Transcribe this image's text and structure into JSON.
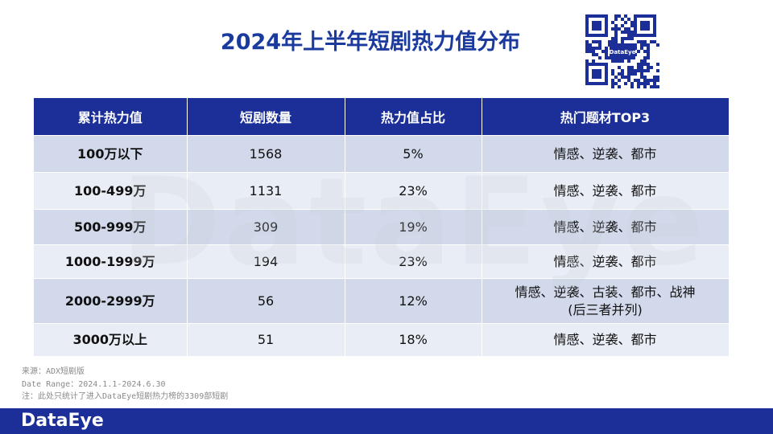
{
  "title": "2024年上半年短剧热力值分布",
  "qr_label": "DataEye",
  "watermark": "DataEye",
  "table": {
    "header": [
      "累计热力值",
      "短剧数量",
      "热力值占比",
      "热门题材TOP3"
    ],
    "rows": [
      [
        "100万以下",
        "1568",
        "5%",
        "情感、逆袭、都市"
      ],
      [
        "100-499万",
        "1131",
        "23%",
        "情感、逆袭、都市"
      ],
      [
        "500-999万",
        "309",
        "19%",
        "情感、逆袭、都市"
      ],
      [
        "1000-1999万",
        "194",
        "23%",
        "情感、逆袭、都市"
      ],
      [
        "2000-2999万",
        "56",
        "12%",
        "情感、逆袭、古装、都市、战神\n(后三者并列)"
      ],
      [
        "3000万以上",
        "51",
        "18%",
        "情感、逆袭、都市"
      ]
    ]
  },
  "notes": [
    "来源：ADX短剧版",
    "Date Range：2024.1.1-2024.6.30",
    "注：此处只统计了进入DataEye短剧热力榜的3309部短剧"
  ],
  "logo": "DataEye"
}
